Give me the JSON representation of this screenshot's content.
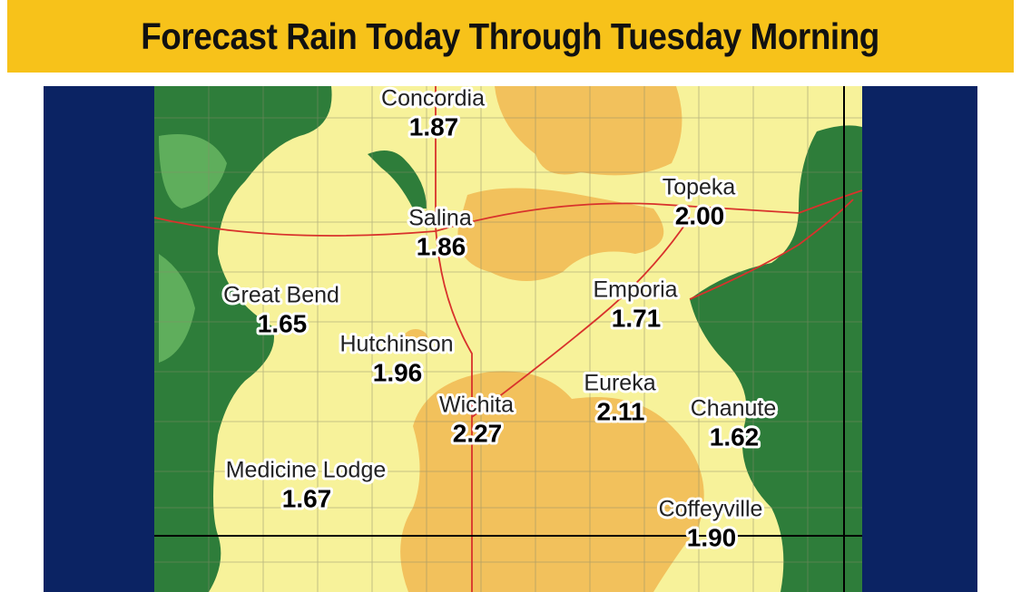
{
  "header": {
    "title": "Forecast Rain Today Through Tuesday Morning"
  },
  "cities": [
    {
      "name": "Concordia",
      "amount": "1.87"
    },
    {
      "name": "Salina",
      "amount": "1.86"
    },
    {
      "name": "Topeka",
      "amount": "2.00"
    },
    {
      "name": "Great Bend",
      "amount": "1.65"
    },
    {
      "name": "Emporia",
      "amount": "1.71"
    },
    {
      "name": "Hutchinson",
      "amount": "1.96"
    },
    {
      "name": "Wichita",
      "amount": "2.27"
    },
    {
      "name": "Eureka",
      "amount": "2.11"
    },
    {
      "name": "Chanute",
      "amount": "1.62"
    },
    {
      "name": "Medicine Lodge",
      "amount": "1.67"
    },
    {
      "name": "Coffeyville",
      "amount": "1.90"
    }
  ]
}
